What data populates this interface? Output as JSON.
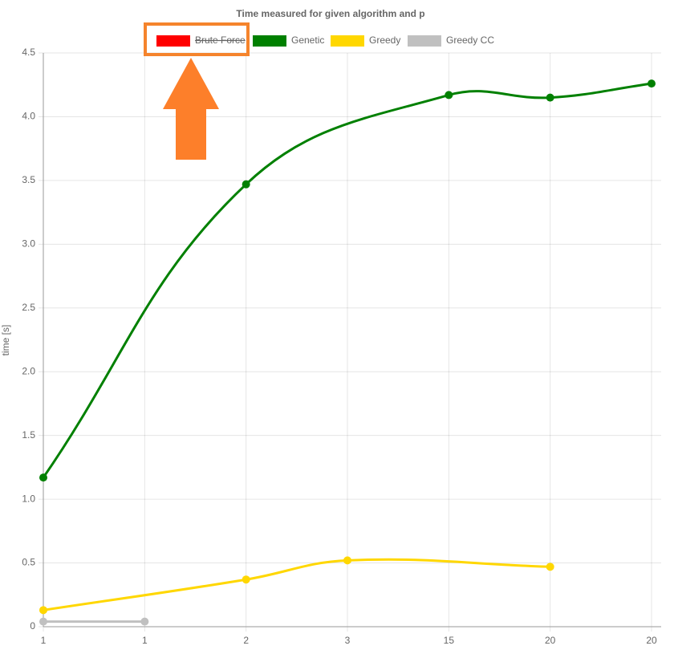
{
  "chart_data": {
    "type": "line",
    "title": "Time measured for given algorithm and p",
    "y_label": "time [s]",
    "categories": [
      "1",
      "1",
      "2",
      "3",
      "15",
      "20",
      "20"
    ],
    "series": [
      {
        "name": "Brute Force",
        "color": "#ff0000",
        "hidden": true,
        "values": [
          null,
          null,
          null,
          null,
          null,
          null,
          null
        ]
      },
      {
        "name": "Genetic",
        "color": "#008000",
        "values": [
          1.17,
          null,
          3.47,
          null,
          4.17,
          4.15,
          4.26
        ]
      },
      {
        "name": "Greedy",
        "color": "#ffd700",
        "values": [
          0.13,
          null,
          0.37,
          0.52,
          null,
          0.47,
          null
        ]
      },
      {
        "name": "Greedy CC",
        "color": "#c0c0c0",
        "values": [
          0.04,
          0.04,
          null,
          null,
          null,
          null,
          null
        ]
      }
    ],
    "span_gaps": true,
    "ylim": [
      0,
      4.5
    ],
    "yticks": [
      0,
      0.5,
      {
        "value": 1,
        "label": "1.0"
      },
      1.5,
      {
        "value": 2,
        "label": "2.0"
      },
      2.5,
      {
        "value": 3,
        "label": "3.0"
      },
      3.5,
      {
        "value": 4,
        "label": "4.0"
      },
      4.5
    ],
    "grid": true
  }
}
